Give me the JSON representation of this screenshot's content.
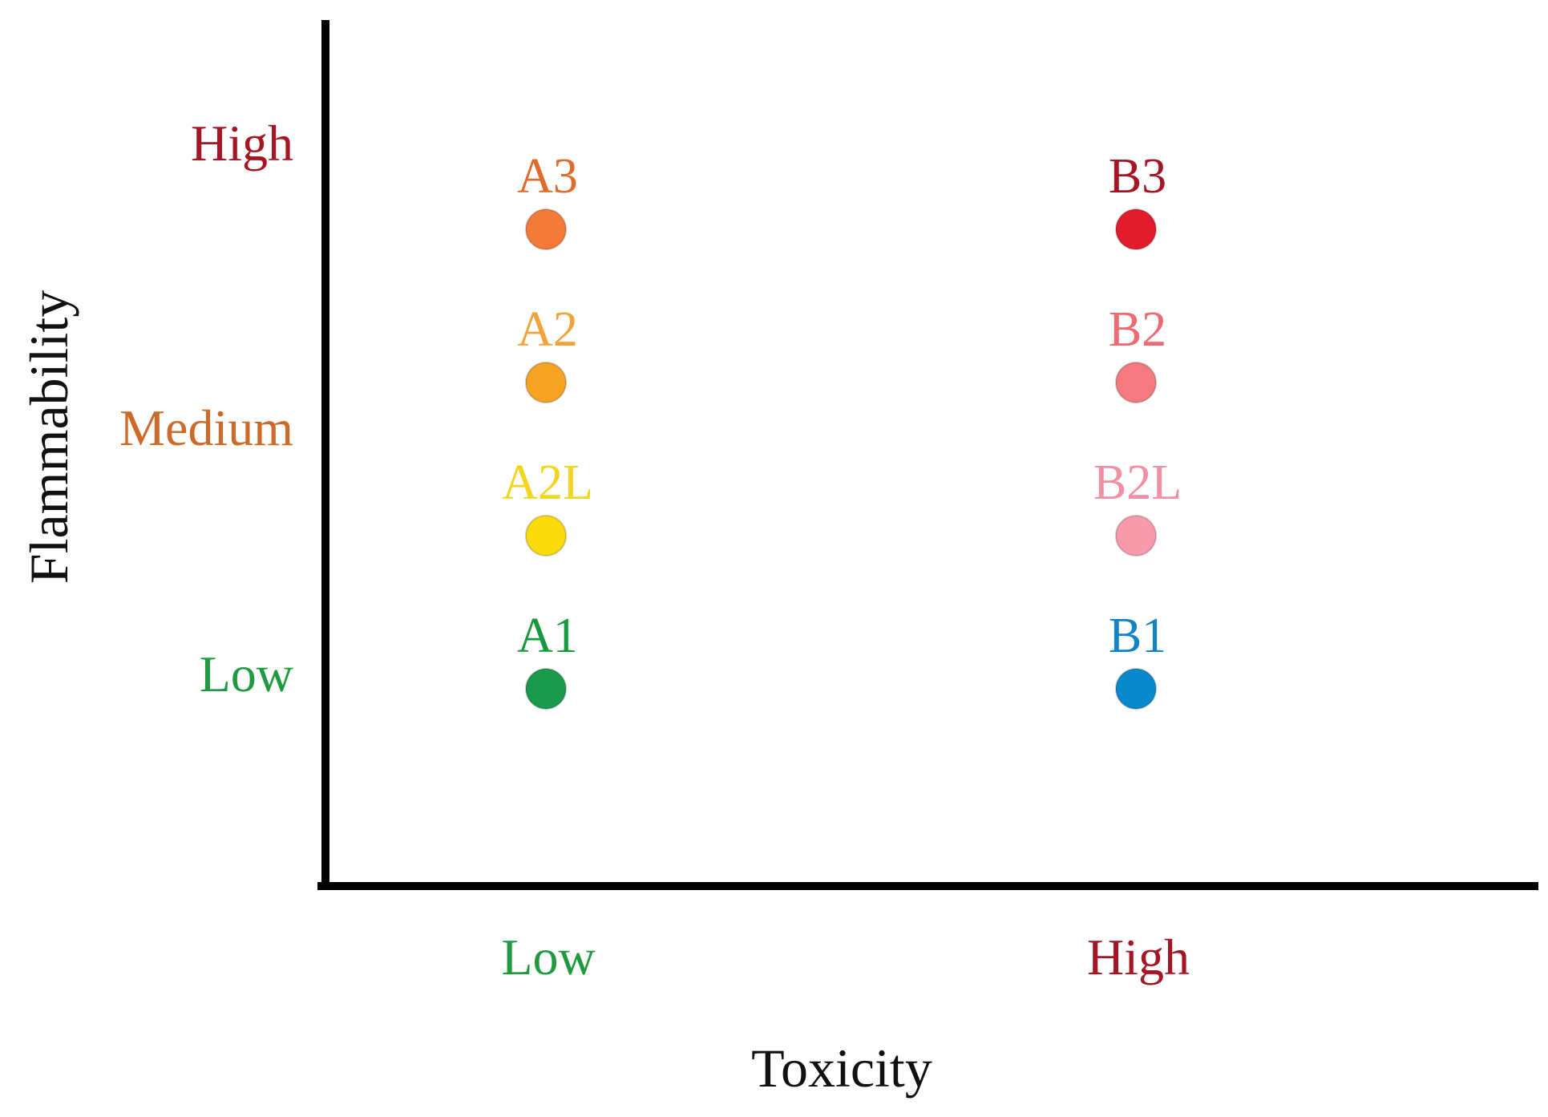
{
  "chart_data": {
    "type": "scatter",
    "title": "",
    "xlabel": "Toxicity",
    "ylabel": "Flammability",
    "x_ticks": [
      {
        "label": "Low",
        "color": "#1f9a3e"
      },
      {
        "label": "High",
        "color": "#a51524"
      }
    ],
    "y_ticks": [
      {
        "label": "High",
        "color": "#a51524"
      },
      {
        "label": "Medium",
        "color": "#cc6a2a"
      },
      {
        "label": "Low",
        "color": "#1f9a3e"
      }
    ],
    "points": [
      {
        "label": "A3",
        "x": "Low",
        "level": 3.0,
        "color": "#f47a3a",
        "label_color": "#e06a2a"
      },
      {
        "label": "A2",
        "x": "Low",
        "level": 2.0,
        "color": "#f6a323",
        "label_color": "#eea43a"
      },
      {
        "label": "A2L",
        "x": "Low",
        "level": 1.0,
        "color": "#fbdc0a",
        "label_color": "#f2d51c"
      },
      {
        "label": "A1",
        "x": "Low",
        "level": 0.0,
        "color": "#1a9a4c",
        "label_color": "#179a3f"
      },
      {
        "label": "B3",
        "x": "High",
        "level": 3.0,
        "color": "#e21c2c",
        "label_color": "#a51524"
      },
      {
        "label": "B2",
        "x": "High",
        "level": 2.0,
        "color": "#f47a80",
        "label_color": "#ee6a72"
      },
      {
        "label": "B2L",
        "x": "High",
        "level": 1.0,
        "color": "#f79aab",
        "label_color": "#f28fa3"
      },
      {
        "label": "B1",
        "x": "High",
        "level": 0.0,
        "color": "#0a88cc",
        "label_color": "#1284c4"
      }
    ],
    "grid": false,
    "legend": "none"
  }
}
